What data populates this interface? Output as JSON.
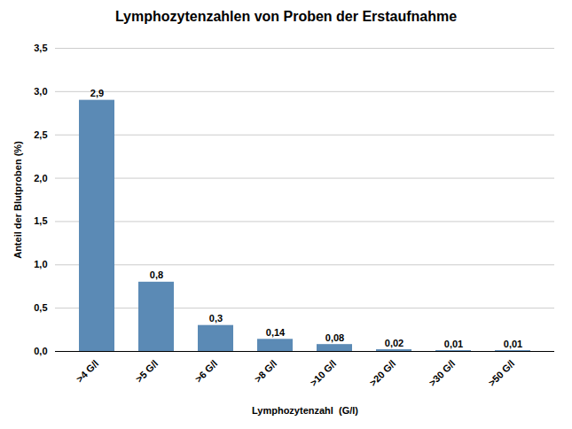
{
  "chart_data": {
    "type": "bar",
    "title": "Lymphozytenzahlen von Proben der Erstaufnahme",
    "xlabel": "Lymphozytenzahl  (G/l)",
    "ylabel": "Anteil der Blutproben (%)",
    "categories": [
      ">4 G/l",
      ">5 G/l",
      ">6 G/l",
      ">8 G/l",
      ">10 G/l",
      ">20 G/l",
      ">30 G/l",
      ">50 G/l"
    ],
    "values": [
      2.9,
      0.8,
      0.3,
      0.14,
      0.08,
      0.02,
      0.01,
      0.01
    ],
    "value_labels": [
      "2,9",
      "0,8",
      "0,3",
      "0,14",
      "0,08",
      "0,02",
      "0,01",
      "0,01"
    ],
    "data_labels": true,
    "color": "#5b8ab5",
    "ylim": [
      0,
      3.5
    ],
    "yticks": [
      {
        "value": 0.0,
        "label": "0,0"
      },
      {
        "value": 0.5,
        "label": "0,5"
      },
      {
        "value": 1.0,
        "label": "1,0"
      },
      {
        "value": 1.5,
        "label": "1,5"
      },
      {
        "value": 2.0,
        "label": "2,0"
      },
      {
        "value": 2.5,
        "label": "2,5"
      },
      {
        "value": 3.0,
        "label": "3,0"
      },
      {
        "value": 3.5,
        "label": "3,5"
      }
    ],
    "grid": true
  }
}
